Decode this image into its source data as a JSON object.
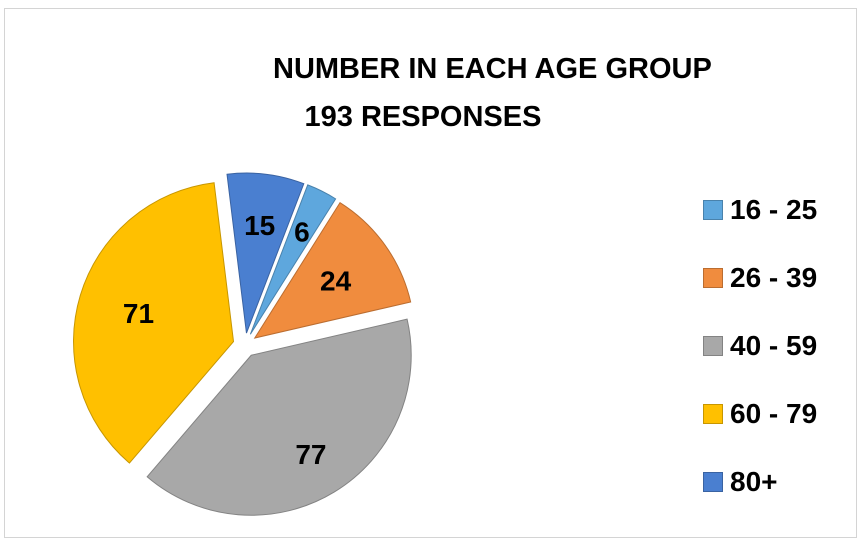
{
  "chart_data": {
    "type": "pie",
    "title": "NUMBER IN EACH AGE GROUP",
    "subtitle": "193 RESPONSES",
    "categories": [
      "16 - 25",
      "26 - 39",
      "40 - 59",
      "60 - 79",
      "80+"
    ],
    "values": [
      6,
      24,
      77,
      71,
      15
    ],
    "colors": [
      "#5ea7dd",
      "#f08c3e",
      "#a8a8a8",
      "#ffc000",
      "#4a7fd0"
    ],
    "legend_position": "right",
    "data_labels": true,
    "exploded": true
  }
}
